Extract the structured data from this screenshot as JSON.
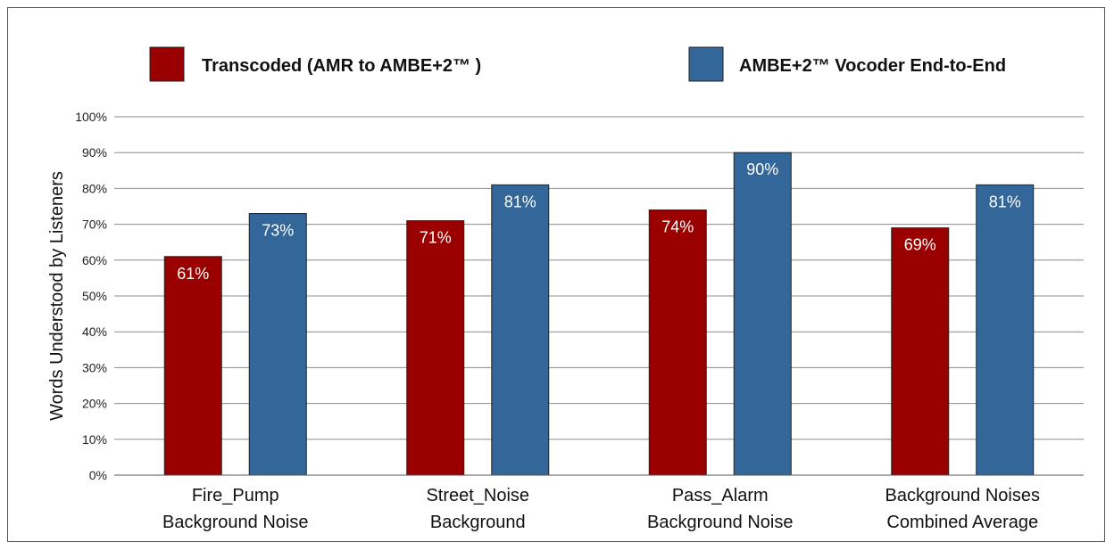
{
  "chart_data": {
    "type": "bar",
    "title": "",
    "ylabel": "Words Understood by Listeners",
    "xlabel": "",
    "ylim": [
      0,
      100
    ],
    "yticks": [
      "0%",
      "10%",
      "20%",
      "30%",
      "40%",
      "50%",
      "60%",
      "70%",
      "80%",
      "90%",
      "100%"
    ],
    "grid": true,
    "legend_position": "top",
    "categories": [
      [
        "Fire_Pump",
        "Background Noise"
      ],
      [
        "Street_Noise",
        "Background"
      ],
      [
        "Pass_Alarm",
        "Background Noise"
      ],
      [
        "Background Noises",
        "Combined Average"
      ]
    ],
    "series": [
      {
        "name": "Transcoded (AMR to AMBE+2™ )",
        "color": "#9b0000",
        "values": [
          61,
          71,
          74,
          69
        ],
        "labels": [
          "61%",
          "71%",
          "74%",
          "69%"
        ]
      },
      {
        "name": "AMBE+2™ Vocoder End-to-End",
        "color": "#336699",
        "values": [
          73,
          81,
          90,
          81
        ],
        "labels": [
          "73%",
          "81%",
          "90%",
          "81%"
        ]
      }
    ]
  }
}
